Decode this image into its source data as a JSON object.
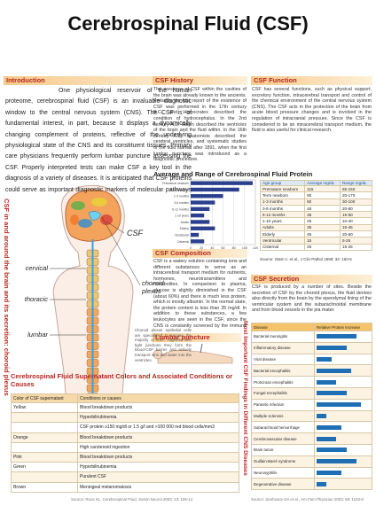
{
  "title": "Cerebrospinal Fluid (CSF)",
  "introduction": {
    "heading": "Introduction",
    "text": "One physiological reservoir of the human proteome, cerebrospinal fluid (CSF) is an invaluable diagnostic window to the central nervous system (CNS). The CSF is of fundamental interest, in part, because it displays a dynamically changing complement of proteins, reflective of the underlying physiological state of the CNS and its constituent tissues. Primary care physicians frequently perform lumbar puncture assessing the CSF. Properly interpreted tests can make CSF a key tool in the diagnosis of a variety of diseases. It is anticipated that CSF proteins could serve as important diagnostic markers of molecular pathways that may serve as targets for therapeutic intervention."
  },
  "history": {
    "heading": "CSF History",
    "text": "The presence of CSF within the cavities of the brain was already known to the ancients. Probably the first report of the existence of CSF was performed in the 17th century B.C., and Hippocrates described the condition of hydrocephalus. In the 2nd century A.D. Galen described the ventricles of the brain and the fluid within. In the 16th century A.D. anatomists described the cerebral ventricles, and systematic studies of the fluid started after 1891, when the first lumbar puncture was introduced as a diagnostic procedure."
  },
  "function": {
    "heading": "CSF Function",
    "text": "CSF has several functions, such as physical support, excretory function, intracerebral transport and control of the chemical environment of the central nervous system (CNS). The CSF acts in the protection of the brain from acute blood pressure changes and is involved in the regulation of intracranial pressure. Since the CSF is considered to be an intracerebral transport medium, the fluid is also useful for clinical research."
  },
  "protein": {
    "heading": "Average and Range of Cerebrospinal Fluid Protein",
    "chart": {
      "type": "bar",
      "xlim": [
        0,
        120
      ],
      "xticks": [
        0,
        20,
        40,
        60,
        80,
        100,
        120
      ],
      "color": "#2b3f8f"
    },
    "table": {
      "header": [
        "Age group",
        "Average mg/dL",
        "Range mg/dL"
      ],
      "rows": [
        {
          "group": "Premature newborn",
          "average": 115,
          "range": "65-150"
        },
        {
          "group": "Term newborn",
          "average": 90,
          "range": "20-170"
        },
        {
          "group": "1-3 months",
          "average": 60,
          "range": "30-100"
        },
        {
          "group": "3-6 months",
          "average": 45,
          "range": "20-80"
        },
        {
          "group": "6-12 months",
          "average": 35,
          "range": "15-60"
        },
        {
          "group": "1-10 years",
          "average": 25,
          "range": "10-40"
        },
        {
          "group": "Adults",
          "average": 35,
          "range": "15-45"
        },
        {
          "group": "Elderly",
          "average": 45,
          "range": "20-60"
        },
        {
          "group": "Ventricular",
          "average": 15,
          "range": "5-25"
        },
        {
          "group": "Cisternal",
          "average": 25,
          "range": "15-25"
        }
      ]
    },
    "source": "Source: Statz A. et al., J Clin Pathol 1998; 32: 163-5"
  },
  "composition": {
    "heading": "CSF Composition",
    "text": "CSF is a watery solution containing ions and different substances to serve as an intracerebral transport medium for nutrients, hormones, neurotransmitters and metabolites. In comparison to plasma, glucose is slightly diminished in the CSF (about 60%) and there is much less protein, which is mostly albumin. In the normal state, the protein content is less than 35 mg/dl. In addition to these substances, a few leukocytes are seen in the CSF, since the CNS is constantly screened by the immune system."
  },
  "secretion": {
    "heading": "CSF Secretion",
    "text": "CSF is produced by a number of sites. Beside the secretion of CSF by the choroid plexus, the fluid derives also directly from the brain by the ependymal lining of the ventricular system and the subarachnoidal membrane and from blood vessels in the pia mater."
  },
  "lumbar_puncture": {
    "heading": "Lumbar puncture"
  },
  "diagram": {
    "side_title": "CSF in and around the brain and its secretion: choroid plexus",
    "csf": "CSF",
    "cervical": "cervical",
    "thoracic": "thoracic",
    "lumbar": "lumbar",
    "choroid": [
      "choroid",
      "plexus"
    ],
    "note": "Choroid plexus epithelial cells are specialized to secrete the majority of CSF. Together with tight junctions they form the blood-CSF barrier and actively transport ions and water into the ventricles."
  },
  "colors": {
    "heading": "Cerebrospinal Fluid Supernatant Colors and Associated Conditions or Causes",
    "header": [
      "Color of CSF supernatant",
      "Conditions or causes"
    ],
    "rows": [
      [
        "Yellow",
        "Blood breakdown products"
      ],
      [
        null,
        "Hyperbilirubinemia"
      ],
      [
        null,
        "CSF protein ≥150 mg/dl or 1.5 g/l and >100 000 red blood cells/mm3"
      ],
      [
        "Orange",
        "Blood breakdown products"
      ],
      [
        null,
        "High carotenoid ingestion"
      ],
      [
        "Pink",
        "Blood breakdown products"
      ],
      [
        "Green",
        "Hyperbilirubinemia"
      ],
      [
        null,
        "Purulent CSF"
      ],
      [
        "Brown",
        "Meningeal melanomatosis"
      ]
    ]
  },
  "diseases": {
    "side_title": "Most Important CSF Findings in Different CNS Diseases",
    "header": [
      "Disease",
      "Relative Protein Increase"
    ],
    "xlim": [
      0,
      5
    ],
    "color": "#1f6fb5",
    "rows": [
      {
        "name": "Bacterial meningitis",
        "value": 4
      },
      {
        "name": "Inflammatory disease",
        "value": 3
      },
      {
        "name": "Viral disease",
        "value": 1.5
      },
      {
        "name": "Bacterial encephalitis",
        "value": 3.5
      },
      {
        "name": "Protozoan encephalitis",
        "value": 2
      },
      {
        "name": "Fungal encephalitis",
        "value": 3
      },
      {
        "name": "Parasitic infection",
        "value": 4.5
      },
      {
        "name": "Multiple sclerosis",
        "value": 1
      },
      {
        "name": "Subarachnoid hemorrhage",
        "value": 2.5
      },
      {
        "name": "Cerebrovascular disease",
        "value": 2
      },
      {
        "name": "Brain tumor",
        "value": 3
      },
      {
        "name": "Guillain-Barré syndrome",
        "value": 4
      },
      {
        "name": "Neurosyphilis",
        "value": 2.5
      },
      {
        "name": "Degenerative disease",
        "value": 1
      }
    ]
  },
  "footer": [
    "Source: Roos KL, Cerebrospinal Fluid, Semin Neurol 2003; 23: 105-14",
    "Source: Seehusen DA et al., Am Fam Physician 2003; 68: 1103-8"
  ]
}
